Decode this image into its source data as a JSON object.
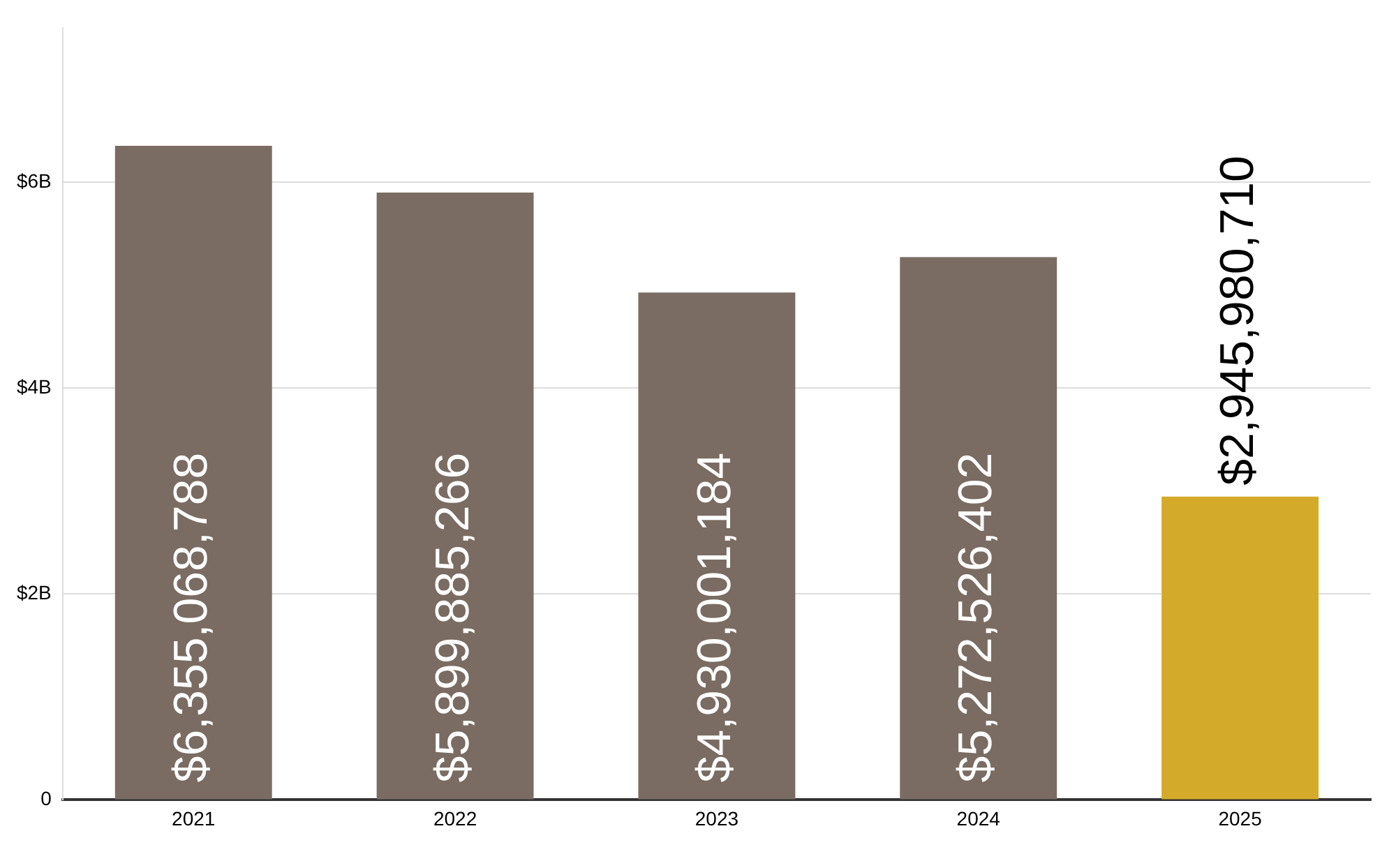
{
  "chart_data": {
    "type": "bar",
    "categories": [
      "2021",
      "2022",
      "2023",
      "2024",
      "2025"
    ],
    "values": [
      6355068788,
      5899885266,
      4930001184,
      5272526402,
      2945980710
    ],
    "colors": [
      "#7a6c62",
      "#7a6c62",
      "#7a6c62",
      "#7a6c62",
      "#d4aa2a"
    ],
    "value_labels": [
      "$6,355,068,788",
      "$5,899,885,266",
      "$4,930,001,184",
      "$5,272,526,402",
      "$2,945,980,710"
    ],
    "ylim": [
      0,
      7500000000
    ],
    "yticks": [
      {
        "value": 0,
        "label": "0"
      },
      {
        "value": 2000000000,
        "label": "$2B"
      },
      {
        "value": 4000000000,
        "label": "$4B"
      },
      {
        "value": 6000000000,
        "label": "$6B"
      }
    ],
    "grid": "y",
    "legend": false
  }
}
